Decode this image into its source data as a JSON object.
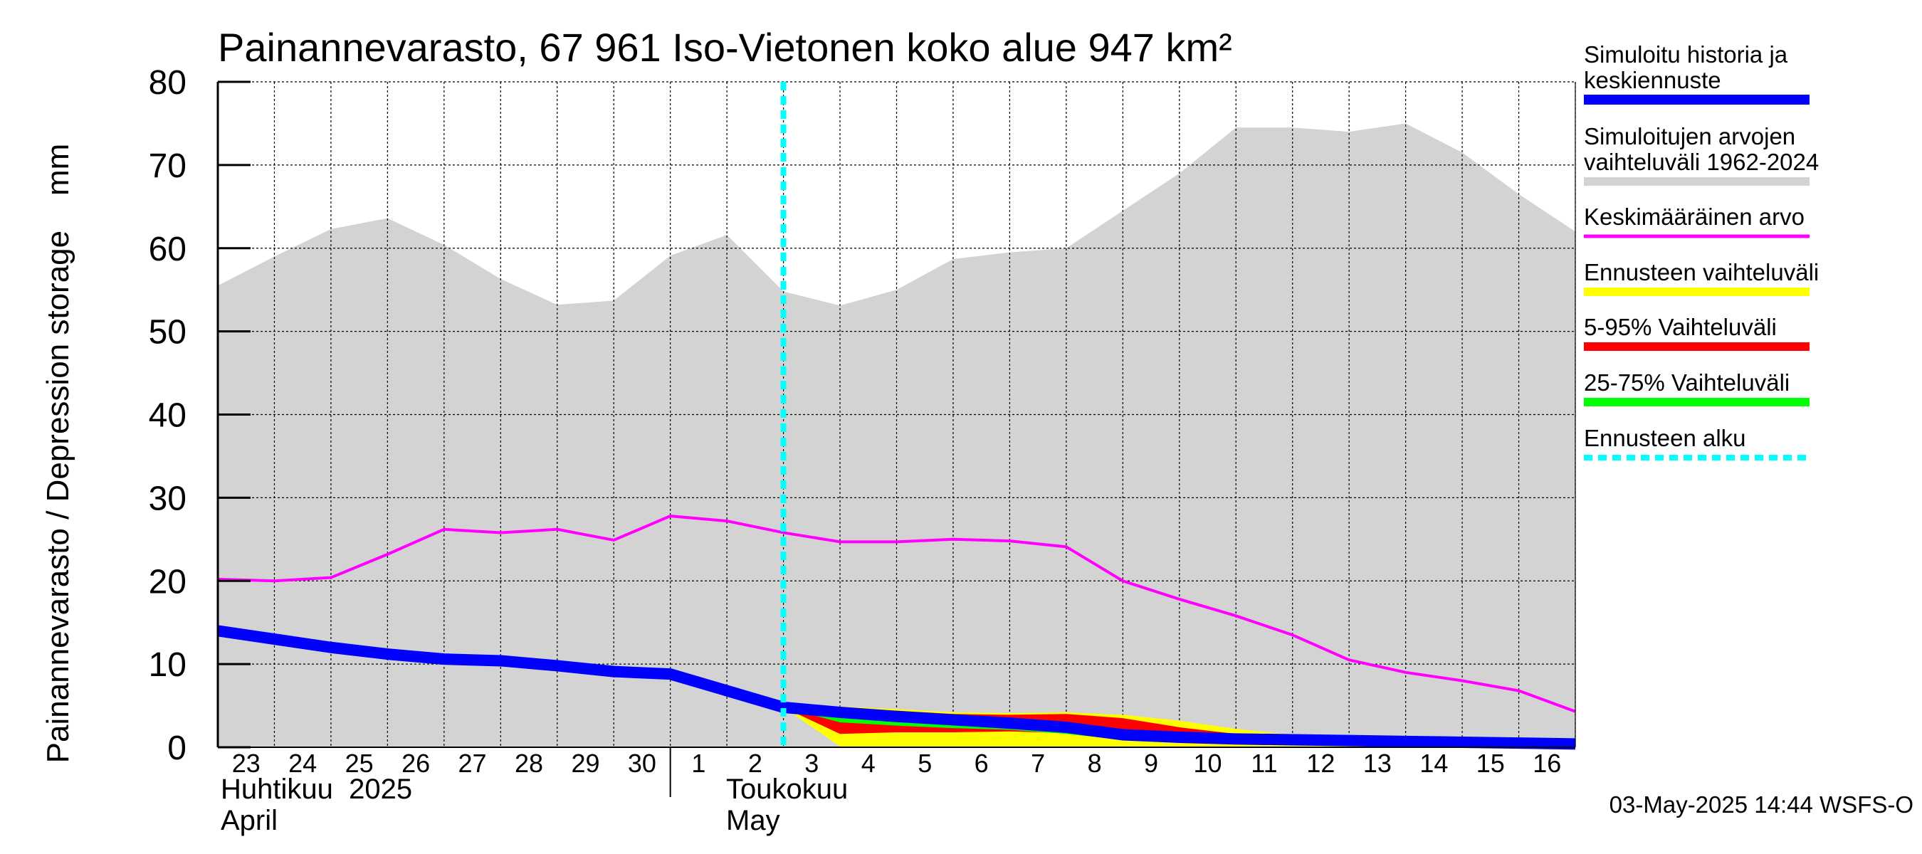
{
  "title": "Painannevarasto, 67 961 Iso-Vietonen koko alue 947 km²",
  "y_axis_label": "Painannevarasto / Depression storage    mm",
  "x_month_labels": [
    {
      "fi": "Huhtikuu  2025",
      "en": "April"
    },
    {
      "fi": "Toukokuu",
      "en": "May"
    }
  ],
  "timestamp": "03-May-2025 14:44 WSFS-O",
  "legend": [
    {
      "label": "Simuloitu historia ja keskiennuste",
      "lines": [
        "Simuloitu historia ja",
        "keskiennuste"
      ],
      "color": "#0000ff",
      "style": "thick"
    },
    {
      "label": "Simuloitujen arvojen vaihteluväli 1962-2024",
      "lines": [
        "Simuloitujen arvojen",
        "vaihteluväli 1962-2024"
      ],
      "color": "#d3d3d3",
      "style": "band"
    },
    {
      "label": "Keskimääräinen arvo",
      "lines": [
        "Keskimääräinen arvo"
      ],
      "color": "#ff00ff",
      "style": "thin"
    },
    {
      "label": "Ennusteen vaihteluväli",
      "lines": [
        "Ennusteen vaihteluväli"
      ],
      "color": "#ffff00",
      "style": "band"
    },
    {
      "label": "5-95% Vaihteluväli",
      "lines": [
        "5-95% Vaihteluväli"
      ],
      "color": "#ff0000",
      "style": "band"
    },
    {
      "label": "25-75% Vaihteluväli",
      "lines": [
        "25-75% Vaihteluväli"
      ],
      "color": "#00ff00",
      "style": "band"
    },
    {
      "label": "Ennusteen alku",
      "lines": [
        "Ennusteen alku"
      ],
      "color": "#00ffff",
      "style": "dashed"
    }
  ],
  "chart_data": {
    "type": "area",
    "title": "Painannevarasto, 67 961 Iso-Vietonen koko alue 947 km²",
    "ylabel": "Painannevarasto / Depression storage    mm",
    "ylim": [
      0,
      80
    ],
    "yticks": [
      0,
      10,
      20,
      30,
      40,
      50,
      60,
      70,
      80
    ],
    "grid": true,
    "legend_position": "right",
    "x": [
      "2025-04-23",
      "2025-04-24",
      "2025-04-25",
      "2025-04-26",
      "2025-04-27",
      "2025-04-28",
      "2025-04-29",
      "2025-04-30",
      "2025-05-01",
      "2025-05-02",
      "2025-05-03",
      "2025-05-04",
      "2025-05-05",
      "2025-05-06",
      "2025-05-07",
      "2025-05-08",
      "2025-05-09",
      "2025-05-10",
      "2025-05-11",
      "2025-05-12",
      "2025-05-13",
      "2025-05-14",
      "2025-05-15",
      "2025-05-16",
      "2025-05-17"
    ],
    "xtick_labels": [
      "23",
      "24",
      "25",
      "26",
      "27",
      "28",
      "29",
      "30",
      "1",
      "2",
      "3",
      "4",
      "5",
      "6",
      "7",
      "8",
      "9",
      "10",
      "11",
      "12",
      "13",
      "14",
      "15",
      "16"
    ],
    "forecast_start": "2025-05-03",
    "historical_range": {
      "name": "Simuloitujen arvojen vaihteluväli 1962-2024",
      "upper": [
        55.5,
        59.0,
        62.3,
        63.6,
        60.4,
        56.3,
        53.2,
        53.7,
        59.1,
        61.6,
        54.8,
        53.1,
        55.0,
        58.7,
        59.5,
        60.0,
        64.5,
        69.0,
        74.5,
        74.5,
        74.0,
        75.0,
        71.5,
        66.5,
        62.0
      ],
      "lower": [
        0,
        0,
        0,
        0,
        0,
        0,
        0,
        0,
        0,
        0,
        0,
        0,
        0,
        0,
        0,
        0,
        0,
        0,
        0,
        0,
        0,
        0,
        0,
        0,
        0
      ]
    },
    "series": [
      {
        "name": "Simuloitu historia ja keskiennuste",
        "values": [
          14.0,
          13.0,
          12.0,
          11.2,
          10.6,
          10.4,
          9.8,
          9.1,
          8.8,
          6.8,
          4.8,
          4.2,
          3.7,
          3.3,
          2.9,
          2.4,
          1.5,
          1.2,
          1.0,
          0.9,
          0.8,
          0.7,
          0.6,
          0.5,
          0.4
        ]
      },
      {
        "name": "Keskimääräinen arvo",
        "values": [
          20.2,
          20.0,
          20.4,
          23.2,
          26.2,
          25.8,
          26.2,
          24.9,
          27.8,
          27.2,
          25.8,
          24.7,
          24.7,
          25.0,
          24.8,
          24.1,
          20.0,
          17.8,
          15.8,
          13.5,
          10.5,
          9.0,
          8.0,
          6.8,
          4.3
        ]
      }
    ],
    "forecast_bands": [
      {
        "name": "Ennusteen vaihteluväli",
        "x_start": "2025-05-03",
        "upper": [
          4.8,
          4.9,
          4.6,
          4.2,
          4.1,
          4.2,
          3.9,
          3.2,
          2.2,
          1.5,
          1.2,
          1.1,
          1.0,
          0.9,
          0.8
        ],
        "lower": [
          4.8,
          0.1,
          0.1,
          0.1,
          0.1,
          0.1,
          0.1,
          0.1,
          0.0,
          0.0,
          0.0,
          0.0,
          0.0,
          0.0,
          0.0
        ]
      },
      {
        "name": "5-95% Vaihteluväli",
        "x_start": "2025-05-03",
        "upper": [
          4.8,
          4.7,
          4.4,
          4.0,
          3.9,
          4.0,
          3.5,
          2.4,
          1.6,
          1.2,
          1.0,
          0.9,
          0.8,
          0.7,
          0.6
        ],
        "lower": [
          4.8,
          1.6,
          1.8,
          1.8,
          1.9,
          1.7,
          1.2,
          0.8,
          0.6,
          0.5,
          0.5,
          0.4,
          0.3,
          0.3,
          0.3
        ]
      },
      {
        "name": "25-75% Vaihteluväli",
        "x_start": "2025-05-03",
        "upper": [
          4.8,
          4.1,
          3.6,
          3.3,
          3.0,
          2.6,
          1.9,
          1.4,
          1.1,
          0.9,
          0.8,
          0.7,
          0.6,
          0.5,
          0.4
        ],
        "lower": [
          4.8,
          3.0,
          2.6,
          2.3,
          2.1,
          1.6,
          0.9,
          0.8,
          0.8,
          0.7,
          0.6,
          0.5,
          0.5,
          0.4,
          0.3
        ]
      }
    ]
  }
}
